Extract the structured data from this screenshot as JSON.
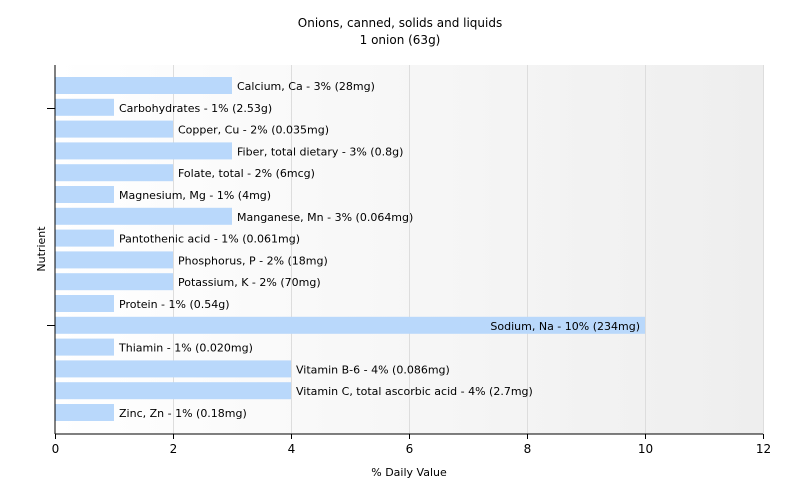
{
  "chart_data": {
    "type": "bar",
    "orientation": "horizontal",
    "title": "Onions, canned, solids and liquids",
    "subtitle": "1 onion (63g)",
    "xlabel": "% Daily Value",
    "ylabel": "Nutrient",
    "xlim": [
      0,
      12
    ],
    "xticks": [
      0,
      2,
      4,
      6,
      8,
      10,
      12
    ],
    "grid": true,
    "bar_color": "#b9d8fb",
    "categories": [
      "Calcium, Ca",
      "Carbohydrates",
      "Copper, Cu",
      "Fiber, total dietary",
      "Folate, total",
      "Magnesium, Mg",
      "Manganese, Mn",
      "Pantothenic acid",
      "Phosphorus, P",
      "Potassium, K",
      "Protein",
      "Sodium, Na",
      "Thiamin",
      "Vitamin B-6",
      "Vitamin C, total ascorbic acid",
      "Zinc, Zn"
    ],
    "values": [
      3,
      1,
      2,
      3,
      2,
      1,
      3,
      1,
      2,
      2,
      1,
      10,
      1,
      4,
      4,
      1
    ],
    "bar_labels": [
      "Calcium, Ca - 3% (28mg)",
      "Carbohydrates - 1% (2.53g)",
      "Copper, Cu - 2% (0.035mg)",
      "Fiber, total dietary - 3% (0.8g)",
      "Folate, total - 2% (6mcg)",
      "Magnesium, Mg - 1% (4mg)",
      "Manganese, Mn - 3% (0.064mg)",
      "Pantothenic acid - 1% (0.061mg)",
      "Phosphorus, P - 2% (18mg)",
      "Potassium, K - 2% (70mg)",
      "Protein - 1% (0.54g)",
      "Sodium, Na - 10% (234mg)",
      "Thiamin - 1% (0.020mg)",
      "Vitamin B-6 - 4% (0.086mg)",
      "Vitamin C, total ascorbic acid - 4% (2.7mg)",
      "Zinc, Zn - 1% (0.18mg)"
    ]
  }
}
